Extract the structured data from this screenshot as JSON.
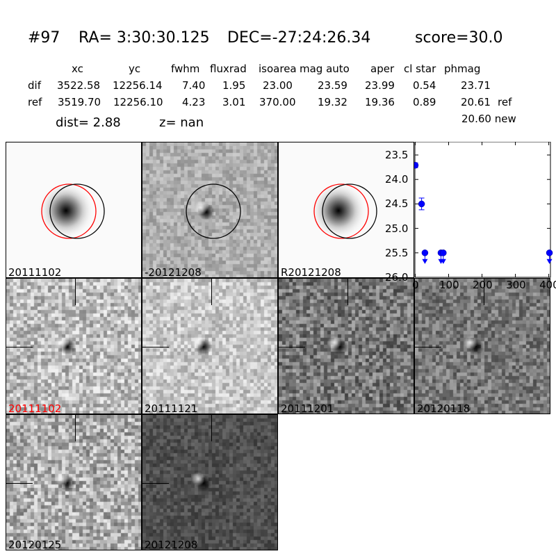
{
  "header": {
    "id": "#97",
    "ra": "RA= 3:30:30.125",
    "dec": "DEC=-27:24:26.34",
    "score": "score=30.0",
    "columns": [
      "xc",
      "yc",
      "fwhm",
      "fluxrad",
      "isoarea",
      "mag auto",
      "aper",
      "cl star",
      "phmag"
    ],
    "rows": [
      {
        "label": "dif",
        "values": [
          "3522.58",
          "12256.14",
          "7.40",
          "1.95",
          "23.00",
          "23.59",
          "23.99",
          "0.54",
          "23.71"
        ],
        "suffix": ""
      },
      {
        "label": "ref",
        "values": [
          "3519.70",
          "12256.10",
          "4.23",
          "3.01",
          "370.00",
          "19.32",
          "19.36",
          "0.89",
          "20.61"
        ],
        "suffix": "ref"
      }
    ],
    "extra_phmag": "20.60 new",
    "dist": "dist=  2.88",
    "z": "z=   nan"
  },
  "panels": [
    {
      "label": "20111102",
      "kind": "ref",
      "label_color": "#000000"
    },
    {
      "label": "-20121208",
      "kind": "diff",
      "label_color": "#000000"
    },
    {
      "label": "R20121208",
      "kind": "ref",
      "label_color": "#000000"
    },
    {
      "label": "20111102",
      "kind": "stamp",
      "label_color": "#ff0000"
    },
    {
      "label": "20111121",
      "kind": "stamp",
      "label_color": "#000000"
    },
    {
      "label": "20111201",
      "kind": "stamp",
      "label_color": "#000000"
    },
    {
      "label": "20120118",
      "kind": "stamp",
      "label_color": "#000000"
    },
    {
      "label": "20120125",
      "kind": "stamp",
      "label_color": "#000000"
    },
    {
      "label": "20121208",
      "kind": "stamp",
      "label_color": "#000000"
    }
  ],
  "chart_data": {
    "type": "scatter",
    "xlim": [
      -1,
      405
    ],
    "ylim": [
      26.0,
      23.23
    ],
    "y_inverted": true,
    "xticks": [
      "0",
      "100",
      "200",
      "300",
      "400"
    ],
    "yticks": [
      "23.5",
      "24.0",
      "24.5",
      "25.0",
      "25.5",
      "26.0"
    ],
    "color": "#0000ff",
    "points": [
      {
        "x": 0,
        "y": 23.71,
        "err": 0.05,
        "upper_limit": false
      },
      {
        "x": 19,
        "y": 24.5,
        "err": 0.12,
        "upper_limit": false
      },
      {
        "x": 29,
        "y": 25.5,
        "err": 0,
        "upper_limit": true
      },
      {
        "x": 77,
        "y": 25.5,
        "err": 0,
        "upper_limit": true
      },
      {
        "x": 84,
        "y": 25.5,
        "err": 0,
        "upper_limit": true
      },
      {
        "x": 402,
        "y": 25.5,
        "err": 0,
        "upper_limit": true
      }
    ]
  }
}
